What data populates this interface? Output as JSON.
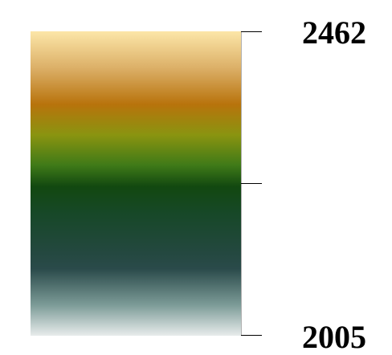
{
  "legend": {
    "max_label": "2462",
    "min_label": "2005",
    "gradient_stops": [
      {
        "offset": 0.0,
        "color": "#fce6a8"
      },
      {
        "offset": 0.12,
        "color": "#dcb068"
      },
      {
        "offset": 0.24,
        "color": "#b8730c"
      },
      {
        "offset": 0.34,
        "color": "#8a9410"
      },
      {
        "offset": 0.44,
        "color": "#3f7a18"
      },
      {
        "offset": 0.51,
        "color": "#124810"
      },
      {
        "offset": 0.6,
        "color": "#174828"
      },
      {
        "offset": 0.72,
        "color": "#23483e"
      },
      {
        "offset": 0.78,
        "color": "#2a4a4a"
      },
      {
        "offset": 0.9,
        "color": "#7d9c98"
      },
      {
        "offset": 1.0,
        "color": "#e8ecec"
      }
    ]
  }
}
